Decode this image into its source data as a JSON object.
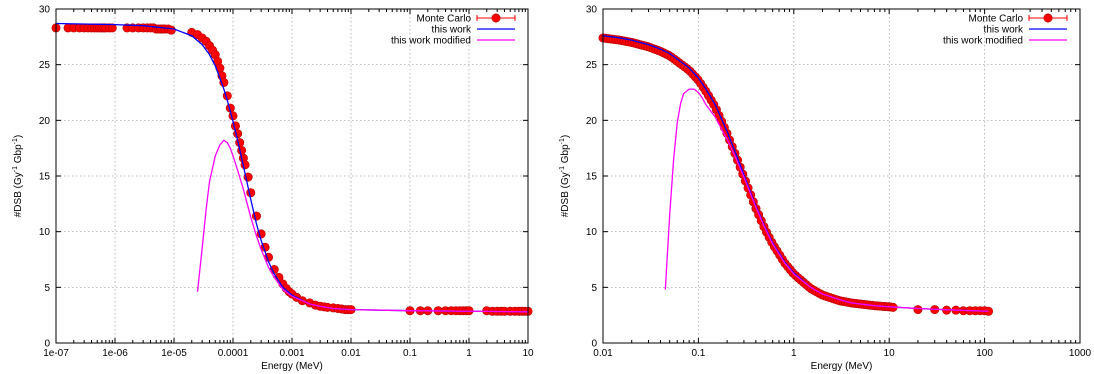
{
  "chart_data": [
    {
      "type": "scatter",
      "xlabel": "Energy (MeV)",
      "ylabel": "#DSB (Gy-1 Gbp-1)",
      "ylabel_parts": {
        "base": "#DSB (Gy",
        "sup1": "-1",
        "mid": " Gbp",
        "sup2": "-1",
        "end": ")"
      },
      "xscale": "log",
      "xlim": [
        1e-07,
        10
      ],
      "ylim": [
        0,
        30
      ],
      "xticks": [
        1e-07,
        1e-06,
        1e-05,
        0.0001,
        0.001,
        0.01,
        0.1,
        1,
        10
      ],
      "xtick_labels": [
        "1e-07",
        "1e-06",
        "1e-05",
        "0.0001",
        "0.001",
        "0.01",
        "0.1",
        "1",
        "10"
      ],
      "yticks": [
        0,
        5,
        10,
        15,
        20,
        25,
        30
      ],
      "ytick_labels": [
        "0",
        "5",
        "10",
        "15",
        "20",
        "25",
        "30"
      ],
      "grid": true,
      "legend_position": "top-right",
      "series": [
        {
          "name": "Monte Carlo",
          "style": "points",
          "color": "#ff0000",
          "edge_color": "#b30000",
          "x": [
            1e-07,
            1.6e-07,
            2e-07,
            2.5e-07,
            3e-07,
            3.5e-07,
            4e-07,
            4.5e-07,
            5e-07,
            5.5e-07,
            6e-07,
            6.5e-07,
            7e-07,
            8e-07,
            9e-07,
            1.6e-06,
            2e-06,
            2.5e-06,
            3e-06,
            3.5e-06,
            4e-06,
            4.5e-06,
            5e-06,
            5.5e-06,
            6e-06,
            6.5e-06,
            7e-06,
            8e-06,
            9e-06,
            2e-05,
            2.5e-05,
            3e-05,
            3.5e-05,
            4e-05,
            4.5e-05,
            5e-05,
            5.5e-05,
            6e-05,
            6.5e-05,
            7e-05,
            8e-05,
            9e-05,
            0.0001,
            0.00011,
            0.00012,
            0.00013,
            0.00014,
            0.00015,
            0.00016,
            0.00018,
            0.0002,
            0.00025,
            0.0003,
            0.00035,
            0.0004,
            0.0005,
            0.0006,
            0.0007,
            0.0008,
            0.0009,
            0.001,
            0.0012,
            0.0015,
            0.002,
            0.0025,
            0.003,
            0.0035,
            0.004,
            0.005,
            0.006,
            0.007,
            0.008,
            0.009,
            0.01,
            0.1,
            0.15,
            0.2,
            0.3,
            0.4,
            0.5,
            0.6,
            0.7,
            0.8,
            0.9,
            1,
            2,
            2.5,
            3,
            3.5,
            4,
            5,
            6,
            7,
            8,
            9,
            10
          ],
          "y": [
            28.3,
            28.3,
            28.3,
            28.3,
            28.3,
            28.3,
            28.3,
            28.3,
            28.3,
            28.3,
            28.3,
            28.3,
            28.3,
            28.3,
            28.3,
            28.3,
            28.3,
            28.3,
            28.3,
            28.3,
            28.3,
            28.3,
            28.2,
            28.2,
            28.2,
            28.2,
            28.2,
            28.2,
            28.1,
            27.9,
            27.7,
            27.4,
            27.1,
            26.7,
            26.3,
            25.9,
            25.3,
            24.7,
            24.0,
            23.4,
            22.2,
            21.1,
            20.4,
            19.5,
            18.8,
            18.0,
            17.3,
            16.6,
            16.0,
            14.9,
            13.5,
            11.4,
            9.8,
            8.6,
            7.7,
            6.6,
            5.9,
            5.3,
            4.9,
            4.6,
            4.4,
            4.1,
            3.8,
            3.6,
            3.4,
            3.3,
            3.25,
            3.2,
            3.15,
            3.1,
            3.05,
            3.0,
            3.0,
            3.0,
            2.9,
            2.9,
            2.9,
            2.9,
            2.9,
            2.9,
            2.9,
            2.9,
            2.9,
            2.9,
            2.9,
            2.9,
            2.85,
            2.85,
            2.85,
            2.85,
            2.85,
            2.85,
            2.85,
            2.85,
            2.85,
            2.85
          ]
        },
        {
          "name": "this work",
          "style": "line",
          "color": "#0000ff",
          "x": [
            1e-07,
            1e-06,
            3e-06,
            1e-05,
            2e-05,
            3e-05,
            4e-05,
            5e-05,
            6e-05,
            7e-05,
            8e-05,
            0.0001,
            0.00012,
            0.00015,
            0.0002,
            0.00025,
            0.0003,
            0.0004,
            0.0005,
            0.0007,
            0.001,
            0.002,
            0.003,
            0.005,
            0.01,
            0.1,
            1,
            10
          ],
          "y": [
            28.7,
            28.6,
            28.5,
            28.2,
            27.6,
            26.8,
            25.9,
            24.9,
            23.8,
            22.8,
            21.8,
            19.9,
            18.2,
            15.9,
            12.9,
            10.7,
            9.2,
            7.3,
            6.2,
            5.0,
            4.3,
            3.5,
            3.3,
            3.1,
            3.0,
            2.9,
            2.85,
            2.8
          ]
        },
        {
          "name": "this work modified",
          "style": "line",
          "color": "#ff00ff",
          "x": [
            2.5e-05,
            3e-05,
            3.5e-05,
            4e-05,
            5e-05,
            6e-05,
            7e-05,
            8e-05,
            9e-05,
            0.0001,
            0.00012,
            0.00015,
            0.0002,
            0.00025,
            0.0003,
            0.0004,
            0.0005,
            0.0007,
            0.001,
            0.002,
            0.003,
            0.005,
            0.01,
            0.1,
            1,
            10
          ],
          "y": [
            4.6,
            8.5,
            12.0,
            14.5,
            16.8,
            17.8,
            18.2,
            18.0,
            17.5,
            16.8,
            15.5,
            13.8,
            11.3,
            9.6,
            8.4,
            6.8,
            5.9,
            4.8,
            4.2,
            3.5,
            3.3,
            3.1,
            3.0,
            2.9,
            2.85,
            2.8
          ]
        }
      ]
    },
    {
      "type": "scatter",
      "xlabel": "Energy (MeV)",
      "ylabel": "#DSB (Gy-1 Gbp-1)",
      "ylabel_parts": {
        "base": "#DSB (Gy",
        "sup1": "-1",
        "mid": " Gbp",
        "sup2": "-1",
        "end": ")"
      },
      "xscale": "log",
      "xlim": [
        0.01,
        1000
      ],
      "ylim": [
        0,
        30
      ],
      "xticks": [
        0.01,
        0.1,
        1,
        10,
        100,
        1000
      ],
      "xtick_labels": [
        "0.01",
        "0.1",
        "1",
        "10",
        "100",
        "1000"
      ],
      "yticks": [
        0,
        5,
        10,
        15,
        20,
        25,
        30
      ],
      "ytick_labels": [
        "0",
        "5",
        "10",
        "15",
        "20",
        "25",
        "30"
      ],
      "grid": true,
      "legend_position": "top-right",
      "series": [
        {
          "name": "Monte Carlo",
          "style": "dense",
          "color": "#ff0000",
          "edge_color": "#b30000",
          "x": [
            0.01,
            0.015,
            0.02,
            0.03,
            0.04,
            0.05,
            0.06,
            0.08,
            0.1,
            0.12,
            0.15,
            0.2,
            0.25,
            0.3,
            0.4,
            0.5,
            0.6,
            0.8,
            1,
            1.5,
            2,
            3,
            4,
            5,
            7,
            10,
            11
          ],
          "y": [
            27.4,
            27.2,
            27.0,
            26.6,
            26.2,
            25.8,
            25.3,
            24.5,
            23.6,
            22.6,
            21.2,
            18.8,
            16.7,
            14.9,
            12.1,
            10.2,
            8.9,
            7.2,
            6.2,
            4.9,
            4.3,
            3.8,
            3.6,
            3.5,
            3.35,
            3.25,
            3.2
          ]
        },
        {
          "name": "Monte Carlo",
          "style": "points",
          "color": "#ff0000",
          "edge_color": "#b30000",
          "x": [
            20,
            30,
            40,
            50,
            60,
            70,
            80,
            90,
            100,
            110
          ],
          "y": [
            3.0,
            3.0,
            2.95,
            2.95,
            2.9,
            2.9,
            2.9,
            2.9,
            2.9,
            2.85
          ]
        },
        {
          "name": "this work",
          "style": "line",
          "color": "#0000ff",
          "x": [
            0.01,
            0.015,
            0.02,
            0.03,
            0.04,
            0.05,
            0.06,
            0.08,
            0.1,
            0.12,
            0.15,
            0.2,
            0.25,
            0.3,
            0.4,
            0.5,
            0.6,
            0.8,
            1,
            1.5,
            2,
            3,
            4,
            5,
            7,
            10,
            20,
            50,
            110
          ],
          "y": [
            27.6,
            27.4,
            27.2,
            26.8,
            26.4,
            26.0,
            25.5,
            24.7,
            23.8,
            22.8,
            21.4,
            19.0,
            16.9,
            15.1,
            12.3,
            10.4,
            9.0,
            7.3,
            6.3,
            5.0,
            4.4,
            3.9,
            3.6,
            3.5,
            3.35,
            3.25,
            3.1,
            2.95,
            2.85
          ]
        },
        {
          "name": "this work modified",
          "style": "line",
          "color": "#ff00ff",
          "x": [
            0.045,
            0.05,
            0.055,
            0.06,
            0.065,
            0.07,
            0.08,
            0.09,
            0.1,
            0.11,
            0.12,
            0.15,
            0.2,
            0.25,
            0.3,
            0.4,
            0.5,
            0.6,
            0.8,
            1,
            1.5,
            2,
            3,
            4,
            5,
            7,
            10,
            20,
            50,
            110
          ],
          "y": [
            4.8,
            11.5,
            16.5,
            19.8,
            21.5,
            22.4,
            22.8,
            22.8,
            22.5,
            22.0,
            21.4,
            20.3,
            18.3,
            16.5,
            14.9,
            12.2,
            10.3,
            8.9,
            7.2,
            6.2,
            5.0,
            4.4,
            3.9,
            3.6,
            3.5,
            3.35,
            3.25,
            3.1,
            2.95,
            2.85
          ]
        }
      ]
    }
  ]
}
